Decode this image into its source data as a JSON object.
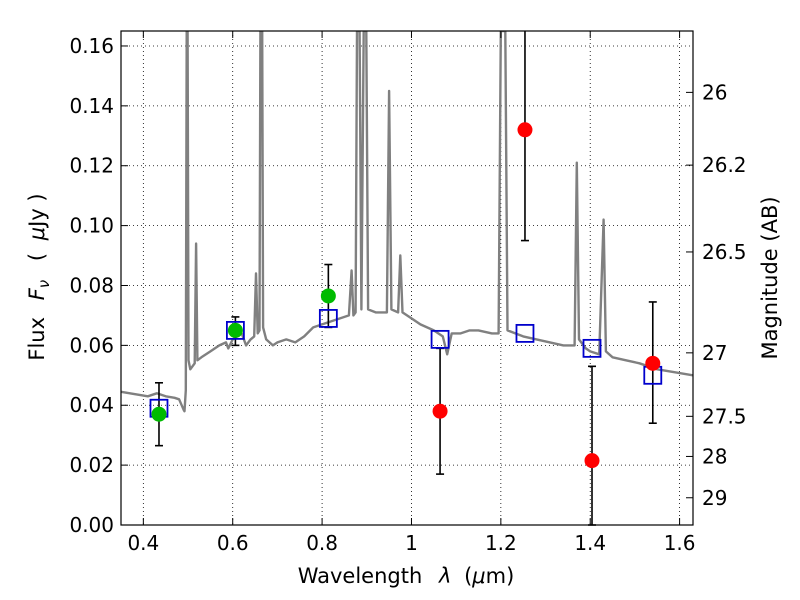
{
  "chart_data": {
    "type": "scatter",
    "xlabel_text": "Wavelength",
    "xlabel_symbol": "λ",
    "xlabel_unit_open": "(",
    "xlabel_unit_mu": "μ",
    "xlabel_unit_rest": "m)",
    "ylabel_text": "Flux",
    "ylabel_symbol": "F",
    "ylabel_symbol_sub": "ν",
    "ylabel_unit_open": "(",
    "ylabel_unit_mu": "μ",
    "ylabel_unit_rest": "Jy )",
    "y2label": "Magnitude (AB)",
    "xlim": [
      0.35,
      1.63
    ],
    "ylim": [
      0.0,
      0.165
    ],
    "grid": true,
    "x_ticks": [
      {
        "value": 0.4,
        "label": "0.4"
      },
      {
        "value": 0.6,
        "label": "0.6"
      },
      {
        "value": 0.8,
        "label": "0.8"
      },
      {
        "value": 1.0,
        "label": "1"
      },
      {
        "value": 1.2,
        "label": "1.2"
      },
      {
        "value": 1.4,
        "label": "1.4"
      },
      {
        "value": 1.6,
        "label": "1.6"
      }
    ],
    "y_ticks": [
      {
        "value": 0.0,
        "label": "0.00"
      },
      {
        "value": 0.02,
        "label": "0.02"
      },
      {
        "value": 0.04,
        "label": "0.04"
      },
      {
        "value": 0.06,
        "label": "0.06"
      },
      {
        "value": 0.08,
        "label": "0.08"
      },
      {
        "value": 0.1,
        "label": "0.10"
      },
      {
        "value": 0.12,
        "label": "0.12"
      },
      {
        "value": 0.14,
        "label": "0.14"
      },
      {
        "value": 0.16,
        "label": "0.16"
      }
    ],
    "y2_ticks": [
      {
        "label": "26",
        "flux": 0.1445
      },
      {
        "label": "26.2",
        "flux": 0.1202
      },
      {
        "label": "26.5",
        "flux": 0.0912
      },
      {
        "label": "27",
        "flux": 0.0575
      },
      {
        "label": "27.5",
        "flux": 0.0363
      },
      {
        "label": "28",
        "flux": 0.0229
      },
      {
        "label": "29",
        "flux": 0.0091
      }
    ],
    "spectrum": {
      "color": "#808080",
      "points": [
        [
          0.35,
          0.0445
        ],
        [
          0.37,
          0.044
        ],
        [
          0.39,
          0.0435
        ],
        [
          0.41,
          0.043
        ],
        [
          0.43,
          0.044
        ],
        [
          0.45,
          0.043
        ],
        [
          0.47,
          0.0425
        ],
        [
          0.48,
          0.042
        ],
        [
          0.49,
          0.0385
        ],
        [
          0.492,
          0.038
        ],
        [
          0.495,
          0.045
        ],
        [
          0.497,
          0.165
        ],
        [
          0.499,
          0.165
        ],
        [
          0.501,
          0.055
        ],
        [
          0.505,
          0.052
        ],
        [
          0.51,
          0.053
        ],
        [
          0.515,
          0.054
        ],
        [
          0.518,
          0.094
        ],
        [
          0.521,
          0.055
        ],
        [
          0.53,
          0.056
        ],
        [
          0.55,
          0.058
        ],
        [
          0.57,
          0.06
        ],
        [
          0.585,
          0.061
        ],
        [
          0.59,
          0.059
        ],
        [
          0.6,
          0.062
        ],
        [
          0.62,
          0.064
        ],
        [
          0.63,
          0.06
        ],
        [
          0.64,
          0.062
        ],
        [
          0.648,
          0.063
        ],
        [
          0.652,
          0.084
        ],
        [
          0.656,
          0.064
        ],
        [
          0.66,
          0.065
        ],
        [
          0.662,
          0.165
        ],
        [
          0.666,
          0.165
        ],
        [
          0.668,
          0.066
        ],
        [
          0.675,
          0.062
        ],
        [
          0.69,
          0.06
        ],
        [
          0.7,
          0.061
        ],
        [
          0.72,
          0.062
        ],
        [
          0.74,
          0.061
        ],
        [
          0.76,
          0.063
        ],
        [
          0.78,
          0.066
        ],
        [
          0.8,
          0.067
        ],
        [
          0.82,
          0.068
        ],
        [
          0.84,
          0.069
        ],
        [
          0.86,
          0.07
        ],
        [
          0.866,
          0.085
        ],
        [
          0.87,
          0.07
        ],
        [
          0.875,
          0.071
        ],
        [
          0.878,
          0.165
        ],
        [
          0.884,
          0.165
        ],
        [
          0.888,
          0.072
        ],
        [
          0.893,
          0.165
        ],
        [
          0.899,
          0.165
        ],
        [
          0.903,
          0.072
        ],
        [
          0.92,
          0.071
        ],
        [
          0.945,
          0.071
        ],
        [
          0.95,
          0.145
        ],
        [
          0.955,
          0.072
        ],
        [
          0.97,
          0.071
        ],
        [
          0.975,
          0.09
        ],
        [
          0.98,
          0.071
        ],
        [
          1.0,
          0.069
        ],
        [
          1.02,
          0.067
        ],
        [
          1.05,
          0.065
        ],
        [
          1.07,
          0.063
        ],
        [
          1.08,
          0.057
        ],
        [
          1.09,
          0.064
        ],
        [
          1.11,
          0.064
        ],
        [
          1.13,
          0.065
        ],
        [
          1.15,
          0.065
        ],
        [
          1.18,
          0.064
        ],
        [
          1.195,
          0.064
        ],
        [
          1.2,
          0.165
        ],
        [
          1.21,
          0.165
        ],
        [
          1.215,
          0.065
        ],
        [
          1.25,
          0.063
        ],
        [
          1.28,
          0.062
        ],
        [
          1.31,
          0.061
        ],
        [
          1.34,
          0.06
        ],
        [
          1.365,
          0.06
        ],
        [
          1.37,
          0.121
        ],
        [
          1.375,
          0.062
        ],
        [
          1.39,
          0.059
        ],
        [
          1.4,
          0.058
        ],
        [
          1.42,
          0.057
        ],
        [
          1.43,
          0.102
        ],
        [
          1.435,
          0.058
        ],
        [
          1.45,
          0.056
        ],
        [
          1.48,
          0.055
        ],
        [
          1.51,
          0.054
        ],
        [
          1.55,
          0.052
        ],
        [
          1.59,
          0.051
        ],
        [
          1.63,
          0.05
        ]
      ]
    },
    "series": [
      {
        "marker": "square-open",
        "color": "#0000cc",
        "points": [
          {
            "x": 0.435,
            "y": 0.039
          },
          {
            "x": 0.606,
            "y": 0.065
          },
          {
            "x": 0.814,
            "y": 0.069
          },
          {
            "x": 1.064,
            "y": 0.062
          },
          {
            "x": 1.254,
            "y": 0.064
          },
          {
            "x": 1.404,
            "y": 0.059
          },
          {
            "x": 1.54,
            "y": 0.05
          }
        ]
      },
      {
        "marker": "circle",
        "color": "#00bb00",
        "points": [
          {
            "x": 0.435,
            "y": 0.037,
            "err_lo": 0.0265,
            "err_hi": 0.0475
          },
          {
            "x": 0.606,
            "y": 0.065,
            "err_lo": 0.06,
            "err_hi": 0.0695
          },
          {
            "x": 0.814,
            "y": 0.0765,
            "err_lo": 0.066,
            "err_hi": 0.087
          }
        ]
      },
      {
        "marker": "circle",
        "color": "#ff0000",
        "points": [
          {
            "x": 1.064,
            "y": 0.038,
            "err_lo": 0.017,
            "err_hi": 0.059
          },
          {
            "x": 1.254,
            "y": 0.132,
            "err_lo": 0.095,
            "err_hi": 0.165
          },
          {
            "x": 1.404,
            "y": 0.0215,
            "err_lo": 0.0,
            "err_hi": 0.053
          },
          {
            "x": 1.54,
            "y": 0.054,
            "err_lo": 0.034,
            "err_hi": 0.0745
          }
        ]
      }
    ]
  }
}
